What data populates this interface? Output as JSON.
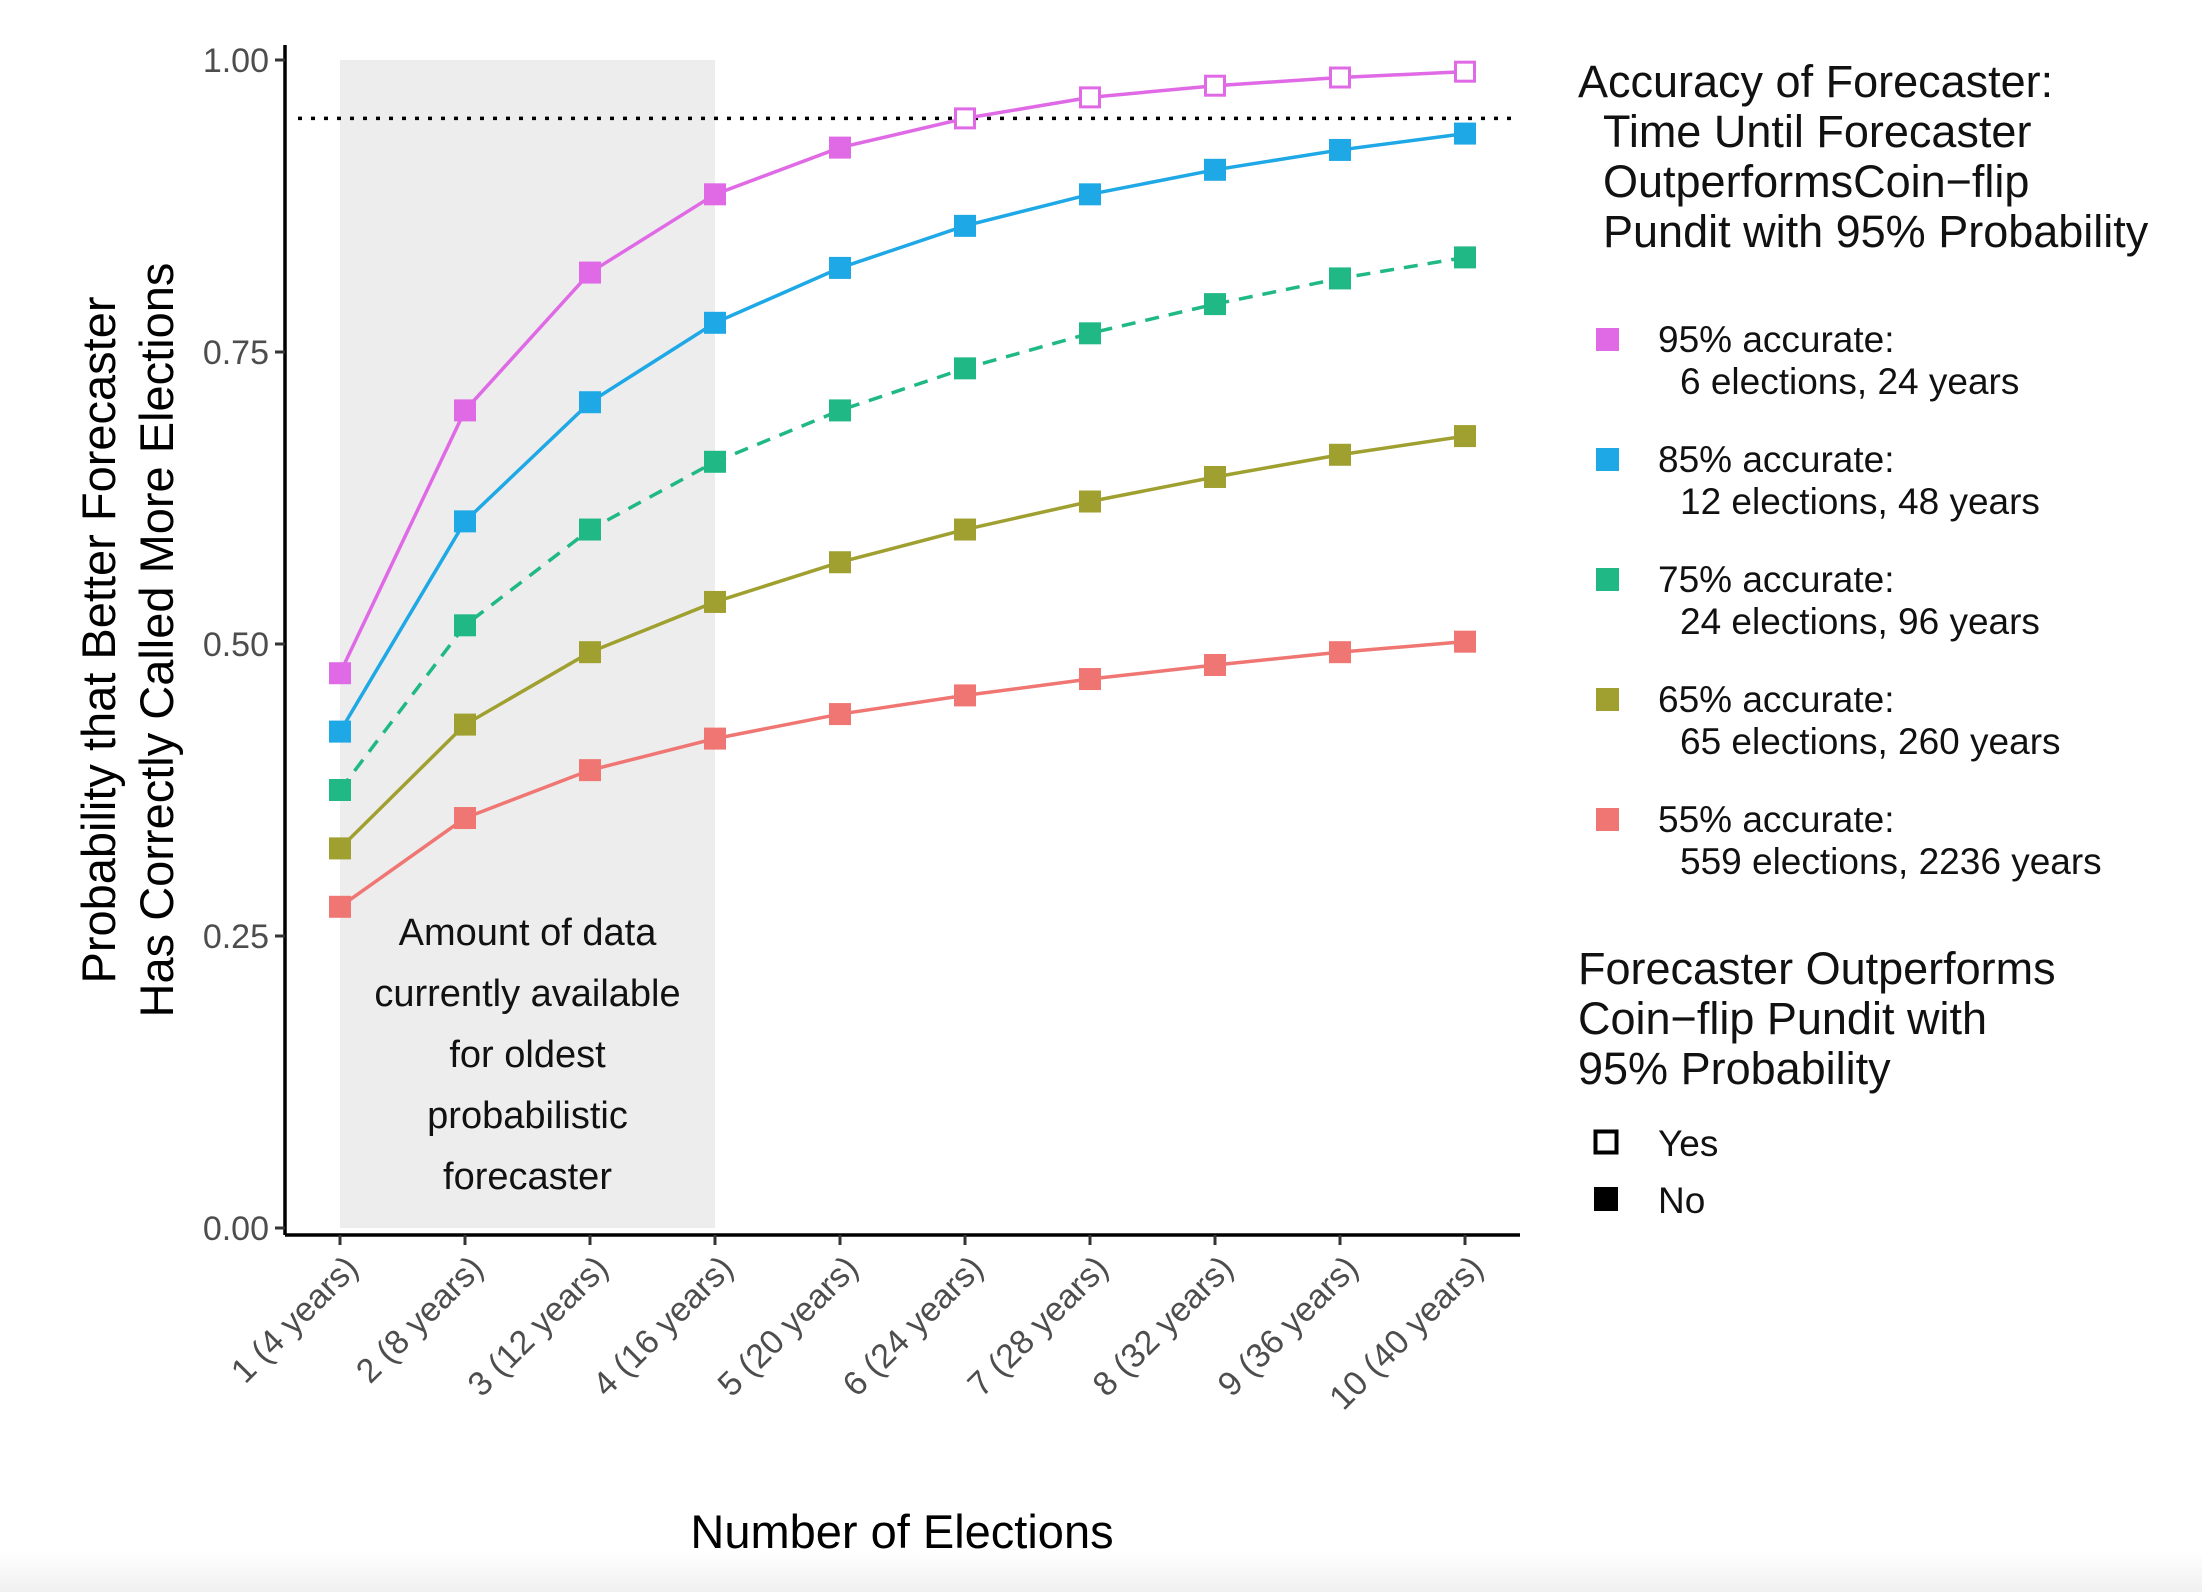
{
  "chart_data": {
    "type": "line",
    "xlabel": "Number of Elections",
    "ylabel_lines": [
      "Probability that Better Forecaster",
      "Has Correctly Called More Elections"
    ],
    "categories": [
      "1 (4 years)",
      "2 (8 years)",
      "3 (12 years)",
      "4 (16 years)",
      "5 (20 years)",
      "6 (24 years)",
      "7 (28 years)",
      "8 (32 years)",
      "9 (36 years)",
      "10 (40 years)"
    ],
    "ylim": [
      0,
      1
    ],
    "yticks": [
      {
        "value": 0.0,
        "label": "0.00"
      },
      {
        "value": 0.25,
        "label": "0.25"
      },
      {
        "value": 0.5,
        "label": "0.50"
      },
      {
        "value": 0.75,
        "label": "0.75"
      },
      {
        "value": 1.0,
        "label": "1.00"
      }
    ],
    "reference_line": {
      "y": 0.95,
      "style": "dotted",
      "color": "#000000"
    },
    "shaded_region": {
      "x_from_index": 0,
      "x_to_index": 3,
      "color": "#ededed",
      "text_lines": [
        "Amount of data",
        "currently available",
        "for oldest",
        "probabilistic",
        "forecaster"
      ]
    },
    "grid": false,
    "series": [
      {
        "name": "95% accurate:",
        "detail": "6 elections, 24 years",
        "color": "#e06ae6",
        "dashed": false,
        "values": [
          0.475,
          0.7,
          0.818,
          0.885,
          0.925,
          0.95,
          0.968,
          0.978,
          0.985,
          0.99
        ],
        "outperforms": [
          false,
          false,
          false,
          false,
          false,
          true,
          true,
          true,
          true,
          true
        ]
      },
      {
        "name": "85% accurate:",
        "detail": "12 elections, 48 years",
        "color": "#1ea8e6",
        "dashed": false,
        "values": [
          0.425,
          0.605,
          0.707,
          0.775,
          0.822,
          0.858,
          0.885,
          0.906,
          0.923,
          0.937
        ],
        "outperforms": [
          false,
          false,
          false,
          false,
          false,
          false,
          false,
          false,
          false,
          false
        ]
      },
      {
        "name": "75% accurate:",
        "detail": "24 elections, 96 years",
        "color": "#20b985",
        "dashed": true,
        "values": [
          0.375,
          0.516,
          0.598,
          0.656,
          0.7,
          0.736,
          0.766,
          0.791,
          0.813,
          0.831
        ],
        "outperforms": [
          false,
          false,
          false,
          false,
          false,
          false,
          false,
          false,
          false,
          false
        ]
      },
      {
        "name": "65% accurate:",
        "detail": "65 elections, 260 years",
        "color": "#a0a030",
        "dashed": false,
        "values": [
          0.325,
          0.431,
          0.493,
          0.536,
          0.57,
          0.598,
          0.622,
          0.643,
          0.662,
          0.678
        ],
        "outperforms": [
          false,
          false,
          false,
          false,
          false,
          false,
          false,
          false,
          false,
          false
        ]
      },
      {
        "name": "55% accurate:",
        "detail": "559 elections, 2236 years",
        "color": "#ef7672",
        "dashed": false,
        "values": [
          0.275,
          0.351,
          0.392,
          0.419,
          0.44,
          0.456,
          0.47,
          0.482,
          0.493,
          0.502
        ],
        "outperforms": [
          false,
          false,
          false,
          false,
          false,
          false,
          false,
          false,
          false,
          false
        ]
      }
    ],
    "legend": {
      "placement": "right",
      "color_title_lines": [
        "Accuracy of Forecaster:",
        "Time Until Forecaster",
        "OutperformsCoin−flip",
        "Pundit with 95% Probability"
      ],
      "shape_title_lines": [
        "Forecaster Outperforms",
        "Coin−flip Pundit with",
        "95% Probability"
      ],
      "shape_entries": [
        {
          "label": "Yes",
          "filled": false
        },
        {
          "label": "No",
          "filled": true
        }
      ]
    }
  }
}
